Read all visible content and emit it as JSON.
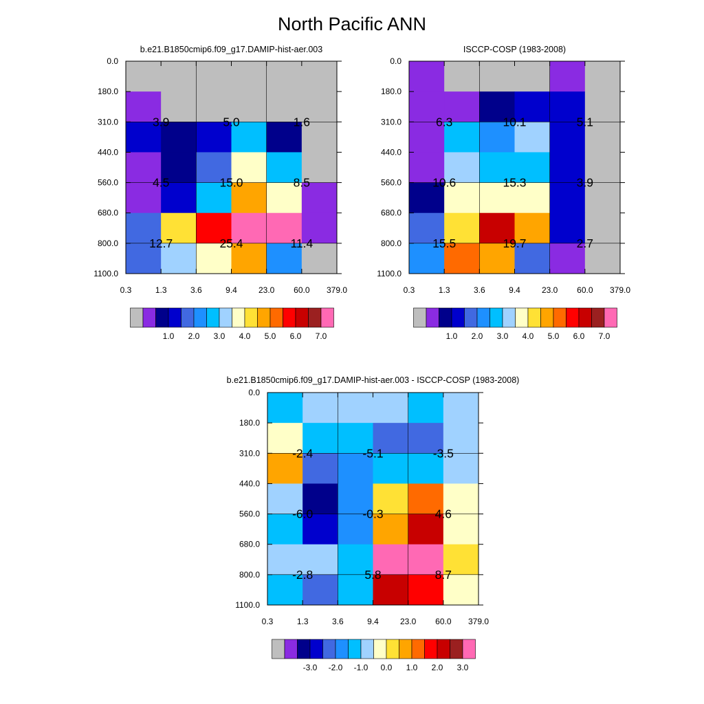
{
  "page_title": "North Pacific ANN",
  "palette": {
    "missing": "#bebebe",
    "colors": [
      "#8a2be2",
      "#00008b",
      "#0000cd",
      "#4169e1",
      "#1e90ff",
      "#00bfff",
      "#a0d2ff",
      "#ffffc8",
      "#ffe135",
      "#ffa500",
      "#ff6a00",
      "#ff0000",
      "#c80000",
      "#9b2020",
      "#ff69b4"
    ]
  },
  "chart_data": [
    {
      "type": "heatmap",
      "title": "b.e21.B1850cmip6.f09_g17.DAMIP-hist-aer.003",
      "x_tick_labels": [
        "0.3",
        "1.3",
        "3.6",
        "9.4",
        "23.0",
        "60.0",
        "379.0"
      ],
      "y_tick_labels": [
        "0.0",
        "180.0",
        "310.0",
        "440.0",
        "560.0",
        "680.0",
        "800.0",
        "1100.0"
      ],
      "color_index_grid": [
        [
          -1,
          -1,
          -1,
          -1,
          -1,
          -1
        ],
        [
          0,
          -1,
          -1,
          -1,
          -1,
          -1
        ],
        [
          2,
          1,
          2,
          5,
          1,
          -1
        ],
        [
          0,
          1,
          3,
          7,
          5,
          -1
        ],
        [
          0,
          2,
          5,
          9,
          7,
          0
        ],
        [
          3,
          8,
          11,
          14,
          14,
          0
        ],
        [
          3,
          6,
          7,
          9,
          4,
          -1
        ]
      ],
      "group_values": [
        [
          "3.9",
          "5.0",
          "1.6"
        ],
        [
          "4.5",
          "15.0",
          "8.5"
        ],
        [
          "12.7",
          "25.4",
          "11.4"
        ]
      ],
      "colorbar_labels": [
        "1.0",
        "2.0",
        "3.0",
        "4.0",
        "5.0",
        "6.0",
        "7.0"
      ]
    },
    {
      "type": "heatmap",
      "title": "ISCCP-COSP (1983-2008)",
      "x_tick_labels": [
        "0.3",
        "1.3",
        "3.6",
        "9.4",
        "23.0",
        "60.0",
        "379.0"
      ],
      "y_tick_labels": [
        "0.0",
        "180.0",
        "310.0",
        "440.0",
        "560.0",
        "680.0",
        "800.0",
        "1100.0"
      ],
      "color_index_grid": [
        [
          0,
          -1,
          -1,
          -1,
          0,
          -1
        ],
        [
          0,
          0,
          1,
          2,
          2,
          -1
        ],
        [
          0,
          5,
          4,
          6,
          2,
          -1
        ],
        [
          0,
          6,
          5,
          5,
          2,
          -1
        ],
        [
          1,
          7,
          7,
          7,
          2,
          -1
        ],
        [
          3,
          8,
          12,
          9,
          2,
          -1
        ],
        [
          4,
          10,
          9,
          3,
          0,
          -1
        ]
      ],
      "group_values": [
        [
          "6.3",
          "10.1",
          "5.1"
        ],
        [
          "10.6",
          "15.3",
          "3.9"
        ],
        [
          "15.5",
          "19.7",
          "2.7"
        ]
      ],
      "colorbar_labels": [
        "1.0",
        "2.0",
        "3.0",
        "4.0",
        "5.0",
        "6.0",
        "7.0"
      ]
    },
    {
      "type": "heatmap",
      "title": "b.e21.B1850cmip6.f09_g17.DAMIP-hist-aer.003 - ISCCP-COSP (1983-2008)",
      "x_tick_labels": [
        "0.3",
        "1.3",
        "3.6",
        "9.4",
        "23.0",
        "60.0",
        "379.0"
      ],
      "y_tick_labels": [
        "0.0",
        "180.0",
        "310.0",
        "440.0",
        "560.0",
        "680.0",
        "800.0",
        "1100.0"
      ],
      "color_index_grid": [
        [
          5,
          6,
          6,
          6,
          5,
          6
        ],
        [
          7,
          5,
          5,
          3,
          3,
          6
        ],
        [
          9,
          3,
          4,
          5,
          5,
          6
        ],
        [
          6,
          1,
          4,
          8,
          10,
          7
        ],
        [
          5,
          2,
          4,
          9,
          12,
          7
        ],
        [
          6,
          6,
          5,
          14,
          14,
          8
        ],
        [
          5,
          3,
          5,
          12,
          11,
          7
        ]
      ],
      "group_values": [
        [
          "-2.4",
          "-5.1",
          "-3.5"
        ],
        [
          "-6.0",
          "-0.3",
          "4.6"
        ],
        [
          "-2.8",
          "5.8",
          "8.7"
        ]
      ],
      "colorbar_labels": [
        "-3.0",
        "-2.0",
        "-1.0",
        "0.0",
        "1.0",
        "2.0",
        "3.0"
      ]
    }
  ]
}
